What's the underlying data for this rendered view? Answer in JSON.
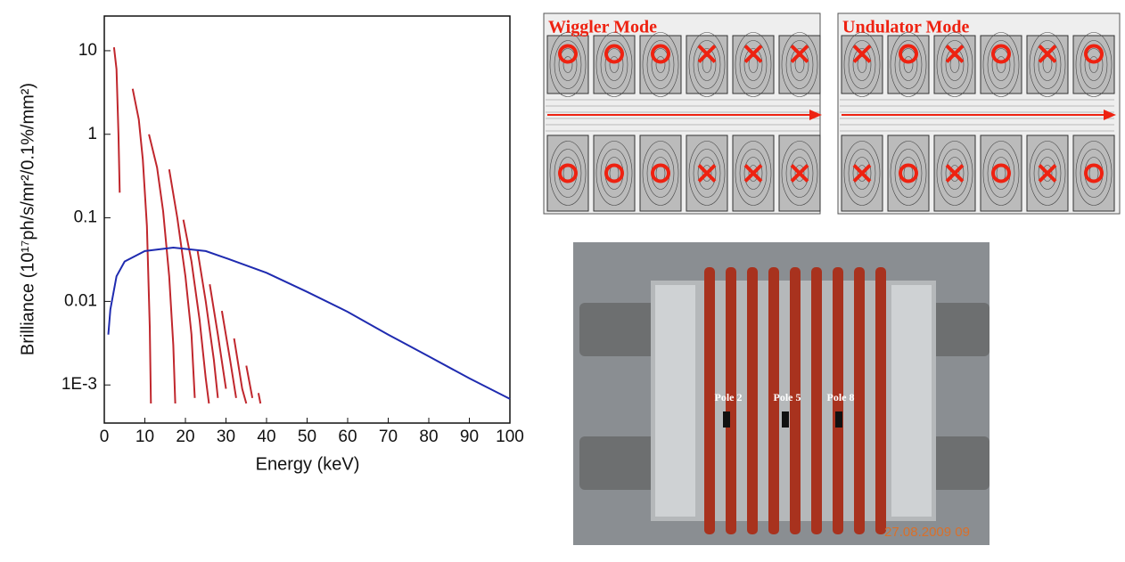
{
  "chart_data": {
    "type": "line",
    "ylabel": "Brilliance (10¹⁷ph/s/mr²/0.1%/mm²)",
    "xlabel": "Energy  (keV)",
    "ylog": true,
    "xlim": [
      0,
      100
    ],
    "ylim": [
      0.00035,
      26
    ],
    "xticks": [
      0,
      10,
      20,
      30,
      40,
      50,
      60,
      70,
      80,
      90,
      100
    ],
    "yticks": [
      {
        "value": 0.001,
        "label": "1E-3"
      },
      0.01,
      0.1,
      1,
      10
    ],
    "series": [
      {
        "color": "#c0272d",
        "x": [
          2.4,
          3,
          3.5,
          3.8
        ],
        "values": [
          11,
          6,
          1,
          0.2
        ]
      },
      {
        "color": "#c0272d",
        "x": [
          7,
          8.5,
          9.5,
          10.5,
          11.2,
          11.5
        ],
        "values": [
          3.5,
          1.5,
          0.5,
          0.08,
          0.005,
          0.0006
        ]
      },
      {
        "color": "#c0272d",
        "x": [
          11,
          13,
          14.5,
          16,
          17,
          17.5
        ],
        "values": [
          1.0,
          0.4,
          0.12,
          0.02,
          0.003,
          0.0006
        ]
      },
      {
        "color": "#c0272d",
        "x": [
          16,
          18,
          20,
          21.5,
          22.3
        ],
        "values": [
          0.38,
          0.1,
          0.02,
          0.004,
          0.0007
        ]
      },
      {
        "color": "#c0272d",
        "x": [
          19.5,
          21.5,
          23.5,
          25,
          25.8
        ],
        "values": [
          0.095,
          0.03,
          0.006,
          0.0012,
          0.0006
        ]
      },
      {
        "color": "#c0272d",
        "x": [
          23,
          25,
          27,
          28
        ],
        "values": [
          0.04,
          0.01,
          0.002,
          0.0007
        ]
      },
      {
        "color": "#c0272d",
        "x": [
          26,
          28,
          30
        ],
        "values": [
          0.016,
          0.004,
          0.0009
        ]
      },
      {
        "color": "#c0272d",
        "x": [
          29,
          31,
          32.5
        ],
        "values": [
          0.0077,
          0.002,
          0.0007
        ]
      },
      {
        "color": "#c0272d",
        "x": [
          32,
          34,
          35
        ],
        "values": [
          0.0036,
          0.0009,
          0.0006
        ]
      },
      {
        "color": "#c0272d",
        "x": [
          35,
          36.5
        ],
        "values": [
          0.0017,
          0.0007
        ]
      },
      {
        "color": "#c0272d",
        "x": [
          38,
          38.5
        ],
        "values": [
          0.0008,
          0.0006
        ]
      },
      {
        "color": "#1f2bb0",
        "x": [
          1,
          1.5,
          3,
          5,
          10,
          17,
          25,
          30,
          40,
          50,
          60,
          70,
          80,
          90,
          100
        ],
        "values": [
          0.004,
          0.008,
          0.02,
          0.03,
          0.04,
          0.044,
          0.04,
          0.033,
          0.022,
          0.013,
          0.0075,
          0.004,
          0.0022,
          0.0012,
          0.00068
        ]
      }
    ]
  },
  "images": {
    "wiggler_title": "Wiggler Mode",
    "undulator_title": "Undulator Mode",
    "pole_labels": [
      "Pole 2",
      "Pole 5",
      "Pole 8"
    ],
    "timestamp": "27.08.2009 09"
  }
}
